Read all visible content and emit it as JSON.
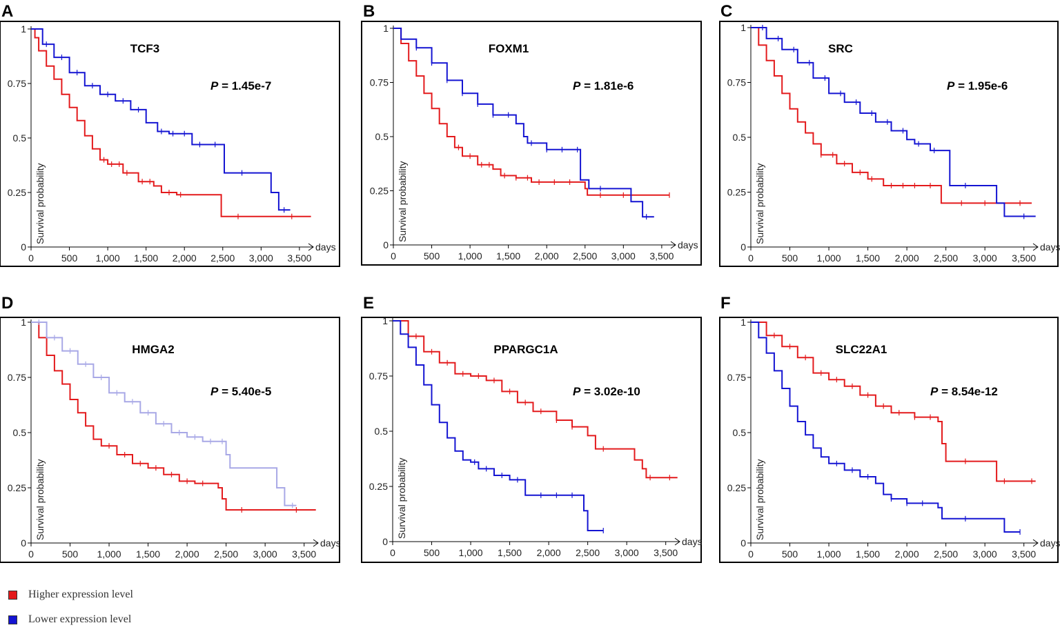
{
  "figure": {
    "legend": [
      {
        "label": "Higher expression level",
        "color": "#e31a1c"
      },
      {
        "label": "Lower expression level",
        "color": "#1414d2"
      }
    ]
  },
  "chart_data": [
    {
      "panel": "A",
      "type": "line",
      "title": "TCF3",
      "pvalue_prefix": "P",
      "pvalue_text": " = 1.45e-7",
      "xlabel": "days",
      "ylabel": "Survival probability",
      "xlim": [
        0,
        3600
      ],
      "ylim": [
        0,
        1
      ],
      "xticks": [
        0,
        500,
        1000,
        1500,
        2000,
        2500,
        3000,
        3500
      ],
      "xtick_labels": [
        "0",
        "500",
        "1,000",
        "1,500",
        "2,000",
        "2,500",
        "3,000",
        "3,500"
      ],
      "yticks": [
        0,
        0.25,
        0.5,
        0.75,
        1
      ],
      "ytick_labels": [
        "0",
        "0.25",
        "0.5",
        "0.75",
        "1"
      ],
      "series": [
        {
          "name": "Higher expression level",
          "color": "#e31a1c",
          "x": [
            0,
            50,
            100,
            200,
            300,
            400,
            500,
            600,
            700,
            800,
            900,
            1000,
            1200,
            1400,
            1600,
            1700,
            1900,
            2000,
            2450,
            2480,
            3650
          ],
          "y": [
            1,
            0.96,
            0.9,
            0.83,
            0.77,
            0.7,
            0.64,
            0.58,
            0.51,
            0.45,
            0.4,
            0.38,
            0.34,
            0.3,
            0.28,
            0.25,
            0.24,
            0.24,
            0.24,
            0.14,
            0.14
          ],
          "censor_x": [
            950,
            1050,
            1150,
            1250,
            1450,
            1550,
            1800,
            1950,
            2700,
            3400
          ]
        },
        {
          "name": "Lower expression level",
          "color": "#1414d2",
          "x": [
            0,
            150,
            300,
            500,
            700,
            900,
            1100,
            1300,
            1500,
            1650,
            1800,
            2000,
            2100,
            2350,
            2500,
            2520,
            3080,
            3130,
            3230,
            3380
          ],
          "y": [
            1,
            0.93,
            0.87,
            0.8,
            0.74,
            0.7,
            0.67,
            0.63,
            0.57,
            0.53,
            0.52,
            0.52,
            0.47,
            0.47,
            0.47,
            0.34,
            0.34,
            0.25,
            0.17,
            0.17
          ],
          "censor_x": [
            200,
            400,
            600,
            800,
            1000,
            1200,
            1400,
            1700,
            1850,
            2000,
            2200,
            2400,
            2750,
            3300
          ]
        }
      ]
    },
    {
      "panel": "B",
      "type": "line",
      "title": "FOXM1",
      "pvalue_prefix": "P",
      "pvalue_text": " = 1.81e-6",
      "xlabel": "days",
      "ylabel": "Survival probability",
      "xlim": [
        0,
        3600
      ],
      "ylim": [
        0,
        1
      ],
      "xticks": [
        0,
        500,
        1000,
        1500,
        2000,
        2500,
        3000,
        3500
      ],
      "xtick_labels": [
        "0",
        "500",
        "1,000",
        "1,500",
        "2,000",
        "2,500",
        "3,000",
        "3,500"
      ],
      "yticks": [
        0,
        0.25,
        0.5,
        0.75,
        1
      ],
      "ytick_labels": [
        "0",
        "0.25",
        "0.5",
        "0.75",
        "1"
      ],
      "series": [
        {
          "name": "Higher expression level",
          "color": "#e31a1c",
          "x": [
            0,
            100,
            200,
            300,
            400,
            500,
            600,
            700,
            800,
            900,
            1100,
            1300,
            1400,
            1600,
            1800,
            2400,
            2500,
            2530,
            3600
          ],
          "y": [
            1,
            0.93,
            0.85,
            0.78,
            0.7,
            0.63,
            0.56,
            0.5,
            0.45,
            0.41,
            0.37,
            0.35,
            0.32,
            0.31,
            0.29,
            0.29,
            0.26,
            0.23,
            0.23
          ],
          "censor_x": [
            850,
            1000,
            1150,
            1250,
            1450,
            1600,
            1750,
            1900,
            2100,
            2300,
            2700,
            3000,
            3600
          ]
        },
        {
          "name": "Lower expression level",
          "color": "#1414d2",
          "x": [
            0,
            100,
            300,
            500,
            700,
            900,
            1100,
            1300,
            1600,
            1700,
            1750,
            1900,
            2000,
            2300,
            2420,
            2440,
            2550,
            3070,
            3100,
            3250,
            3400
          ],
          "y": [
            1,
            0.95,
            0.91,
            0.84,
            0.76,
            0.7,
            0.65,
            0.6,
            0.56,
            0.5,
            0.47,
            0.47,
            0.44,
            0.44,
            0.44,
            0.3,
            0.26,
            0.26,
            0.2,
            0.13,
            0.13
          ],
          "censor_x": [
            300,
            500,
            700,
            900,
            1100,
            1300,
            1500,
            1800,
            2000,
            2200,
            2400,
            2700,
            3300
          ]
        }
      ]
    },
    {
      "panel": "C",
      "type": "line",
      "title": "SRC",
      "pvalue_prefix": "P",
      "pvalue_text": " = 1.95e-6",
      "xlabel": "days",
      "ylabel": "Survival probability",
      "xlim": [
        0,
        3600
      ],
      "ylim": [
        0,
        1
      ],
      "xticks": [
        0,
        500,
        1000,
        1500,
        2000,
        2500,
        3000,
        3500
      ],
      "xtick_labels": [
        "0",
        "500",
        "1,000",
        "1,500",
        "2,000",
        "2,500",
        "3,000",
        "3,500"
      ],
      "yticks": [
        0,
        0.25,
        0.5,
        0.75,
        1
      ],
      "ytick_labels": [
        "0",
        "0.25",
        "0.5",
        "0.75",
        "1"
      ],
      "series": [
        {
          "name": "Higher expression level",
          "color": "#e31a1c",
          "x": [
            0,
            100,
            200,
            300,
            400,
            500,
            600,
            700,
            800,
            900,
            1100,
            1300,
            1500,
            1700,
            1800,
            2400,
            2440,
            3600
          ],
          "y": [
            1,
            0.92,
            0.85,
            0.78,
            0.7,
            0.63,
            0.57,
            0.52,
            0.47,
            0.42,
            0.38,
            0.34,
            0.31,
            0.28,
            0.28,
            0.28,
            0.2,
            0.2
          ],
          "censor_x": [
            900,
            1050,
            1200,
            1400,
            1550,
            1800,
            1950,
            2100,
            2300,
            2700,
            3000,
            3450
          ]
        },
        {
          "name": "Lower expression level",
          "color": "#1414d2",
          "x": [
            0,
            200,
            400,
            600,
            800,
            1000,
            1200,
            1400,
            1600,
            1800,
            2000,
            2100,
            2300,
            2450,
            2550,
            3100,
            3150,
            3250,
            3650
          ],
          "y": [
            1,
            0.95,
            0.9,
            0.84,
            0.77,
            0.7,
            0.66,
            0.61,
            0.57,
            0.53,
            0.49,
            0.47,
            0.44,
            0.44,
            0.28,
            0.28,
            0.2,
            0.14,
            0.14
          ],
          "censor_x": [
            150,
            350,
            550,
            750,
            950,
            1150,
            1350,
            1550,
            1750,
            1950,
            2150,
            2350,
            2750,
            3500
          ]
        }
      ]
    },
    {
      "panel": "D",
      "type": "line",
      "title": "HMGA2",
      "pvalue_prefix": "P",
      "pvalue_text": " = 5.40e-5",
      "xlabel": "days",
      "ylabel": "Survival probability",
      "xlim": [
        0,
        3600
      ],
      "ylim": [
        0,
        1
      ],
      "xticks": [
        0,
        500,
        1000,
        1500,
        2000,
        2500,
        3000,
        3500
      ],
      "xtick_labels": [
        "0",
        "500",
        "1,000",
        "1,500",
        "2,000",
        "2,500",
        "3,000",
        "3,500"
      ],
      "yticks": [
        0,
        0.25,
        0.5,
        0.75,
        1
      ],
      "ytick_labels": [
        "0",
        "0.25",
        "0.5",
        "0.75",
        "1"
      ],
      "series": [
        {
          "name": "Higher expression level",
          "color": "#e31a1c",
          "x": [
            0,
            100,
            200,
            300,
            400,
            500,
            600,
            700,
            800,
            900,
            1100,
            1300,
            1500,
            1700,
            1900,
            2100,
            2400,
            2450,
            2500,
            3650
          ],
          "y": [
            1,
            0.93,
            0.85,
            0.78,
            0.72,
            0.65,
            0.59,
            0.53,
            0.47,
            0.44,
            0.4,
            0.36,
            0.34,
            0.31,
            0.28,
            0.27,
            0.25,
            0.2,
            0.15,
            0.15
          ],
          "censor_x": [
            1000,
            1200,
            1400,
            1600,
            1800,
            2000,
            2200,
            2700,
            3400
          ]
        },
        {
          "name": "Lower expression level",
          "color": "#a8a8e6",
          "x": [
            0,
            200,
            400,
            600,
            800,
            1000,
            1200,
            1400,
            1600,
            1800,
            2000,
            2200,
            2450,
            2500,
            2550,
            3150,
            3250,
            3400
          ],
          "y": [
            1,
            0.93,
            0.87,
            0.81,
            0.75,
            0.68,
            0.64,
            0.59,
            0.54,
            0.5,
            0.48,
            0.46,
            0.46,
            0.4,
            0.34,
            0.25,
            0.17,
            0.17
          ],
          "censor_x": [
            100,
            300,
            500,
            700,
            900,
            1100,
            1300,
            1500,
            1700,
            1900,
            2100,
            2300,
            2450,
            3350
          ]
        }
      ]
    },
    {
      "panel": "E",
      "type": "line",
      "title": "PPARGC1A",
      "pvalue_prefix": "P",
      "pvalue_text": " = 3.02e-10",
      "xlabel": "days",
      "ylabel": "Survival probability",
      "xlim": [
        0,
        3600
      ],
      "ylim": [
        0,
        1
      ],
      "xticks": [
        0,
        500,
        1000,
        1500,
        2000,
        2500,
        3000,
        3500
      ],
      "xtick_labels": [
        "0",
        "500",
        "1,000",
        "1,500",
        "2,000",
        "2,500",
        "3,000",
        "3,500"
      ],
      "yticks": [
        0,
        0.25,
        0.5,
        0.75,
        1
      ],
      "ytick_labels": [
        "0",
        "0.25",
        "0.5",
        "0.75",
        "1"
      ],
      "series": [
        {
          "name": "Higher expression level",
          "color": "#e31a1c",
          "x": [
            0,
            200,
            400,
            600,
            800,
            1000,
            1200,
            1400,
            1600,
            1800,
            2100,
            2300,
            2500,
            2600,
            3100,
            3200,
            3250,
            3650
          ],
          "y": [
            1,
            0.93,
            0.86,
            0.81,
            0.76,
            0.75,
            0.73,
            0.68,
            0.63,
            0.59,
            0.55,
            0.52,
            0.48,
            0.42,
            0.37,
            0.33,
            0.29,
            0.29
          ],
          "censor_x": [
            300,
            500,
            700,
            900,
            1100,
            1300,
            1500,
            1700,
            1900,
            2100,
            2300,
            2700,
            3300,
            3550
          ]
        },
        {
          "name": "Lower expression level",
          "color": "#1414d2",
          "x": [
            0,
            100,
            200,
            300,
            400,
            500,
            600,
            700,
            800,
            900,
            1000,
            1100,
            1300,
            1500,
            1700,
            1800,
            2400,
            2450,
            2500,
            2700
          ],
          "y": [
            1,
            0.94,
            0.88,
            0.8,
            0.71,
            0.62,
            0.54,
            0.47,
            0.41,
            0.37,
            0.36,
            0.33,
            0.3,
            0.28,
            0.21,
            0.21,
            0.21,
            0.14,
            0.05,
            0.05
          ],
          "censor_x": [
            1050,
            1200,
            1400,
            1600,
            1900,
            2100,
            2300,
            2700
          ]
        }
      ]
    },
    {
      "panel": "F",
      "type": "line",
      "title": "SLC22A1",
      "pvalue_prefix": "P",
      "pvalue_text": " = 8.54e-12",
      "xlabel": "days",
      "ylabel": "Survival probability",
      "xlim": [
        0,
        3600
      ],
      "ylim": [
        0,
        1
      ],
      "xticks": [
        0,
        500,
        1000,
        1500,
        2000,
        2500,
        3000,
        3500
      ],
      "xtick_labels": [
        "0",
        "500",
        "1,000",
        "1,500",
        "2,000",
        "2,500",
        "3,000",
        "3,500"
      ],
      "yticks": [
        0,
        0.25,
        0.5,
        0.75,
        1
      ],
      "ytick_labels": [
        "0",
        "0.25",
        "0.5",
        "0.75",
        "1"
      ],
      "series": [
        {
          "name": "Higher expression level",
          "color": "#e31a1c",
          "x": [
            0,
            200,
            400,
            600,
            800,
            1000,
            1200,
            1400,
            1600,
            1800,
            2100,
            2400,
            2450,
            2500,
            3100,
            3150,
            3650
          ],
          "y": [
            1,
            0.94,
            0.89,
            0.84,
            0.77,
            0.74,
            0.71,
            0.67,
            0.62,
            0.59,
            0.57,
            0.55,
            0.45,
            0.37,
            0.37,
            0.28,
            0.28
          ],
          "censor_x": [
            300,
            500,
            700,
            900,
            1100,
            1300,
            1500,
            1700,
            1900,
            2100,
            2300,
            2750,
            3250,
            3600
          ]
        },
        {
          "name": "Lower expression level",
          "color": "#1414d2",
          "x": [
            0,
            100,
            200,
            300,
            400,
            500,
            600,
            700,
            800,
            900,
            1000,
            1200,
            1400,
            1600,
            1700,
            1800,
            2000,
            2400,
            2450,
            3200,
            3250,
            3450
          ],
          "y": [
            1,
            0.93,
            0.86,
            0.78,
            0.7,
            0.62,
            0.55,
            0.49,
            0.43,
            0.39,
            0.36,
            0.33,
            0.3,
            0.27,
            0.22,
            0.2,
            0.18,
            0.16,
            0.11,
            0.11,
            0.05,
            0.05
          ],
          "censor_x": [
            1100,
            1300,
            1500,
            1800,
            2000,
            2200,
            2750,
            3450
          ]
        }
      ]
    }
  ]
}
